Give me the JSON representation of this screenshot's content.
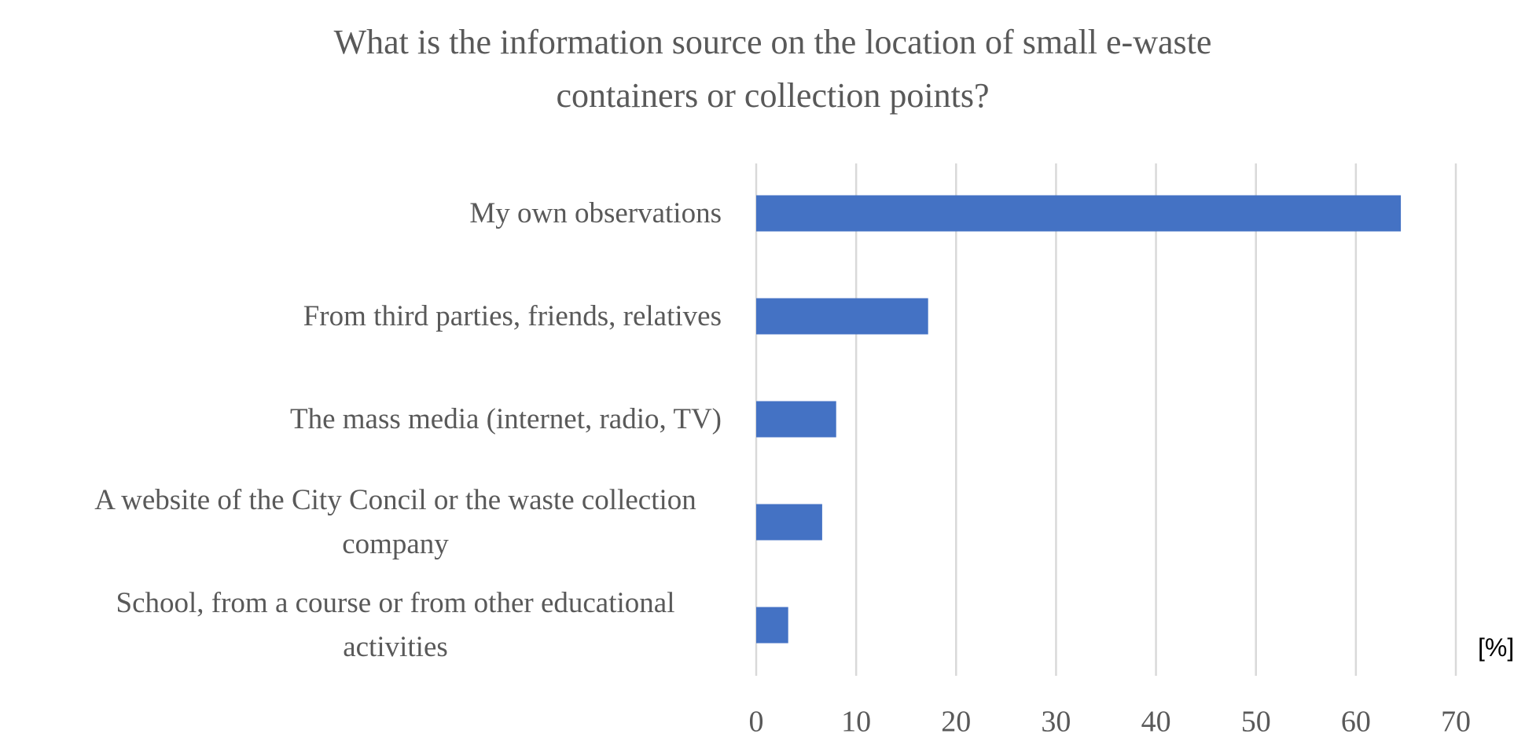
{
  "chart_data": {
    "type": "barh",
    "title": "What is the information source on the location of small e-waste containers or collection points?",
    "categories": [
      "My own observations",
      "From third parties, friends, relatives",
      "The mass media (internet, radio, TV)",
      "A website of the City Concil or the waste collection company",
      "School, from a course or from other educational activities"
    ],
    "values": [
      64.5,
      17.2,
      8,
      6.6,
      3.2
    ],
    "color": "#4472c4",
    "xlim": [
      0,
      70
    ],
    "xticks": [
      0,
      10,
      20,
      30,
      40,
      50,
      60,
      70
    ],
    "grid": true,
    "unit_label": "[%]"
  }
}
